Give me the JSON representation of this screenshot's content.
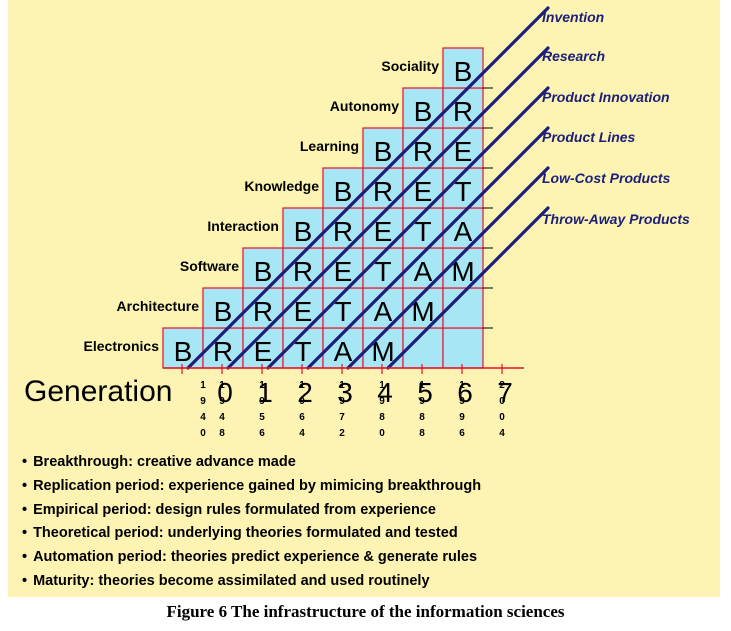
{
  "rows": [
    {
      "label": "Electronics",
      "start_generation": 0
    },
    {
      "label": "Architecture",
      "start_generation": 1
    },
    {
      "label": "Software",
      "start_generation": 2
    },
    {
      "label": "Interaction",
      "start_generation": 3
    },
    {
      "label": "Knowledge",
      "start_generation": 4
    },
    {
      "label": "Learning",
      "start_generation": 5
    },
    {
      "label": "Autonomy",
      "start_generation": 6
    },
    {
      "label": "Sociality",
      "start_generation": 7
    }
  ],
  "phase_letters": [
    "B",
    "R",
    "E",
    "T",
    "A",
    "M"
  ],
  "diagonal_labels": [
    "Invention",
    "Research",
    "Product Innovation",
    "Product Lines",
    "Low-Cost Products",
    "Throw-Away Products"
  ],
  "generation_title": "Generation",
  "generations": [
    "0",
    "1",
    "2",
    "3",
    "4",
    "5",
    "6",
    "7"
  ],
  "years": [
    "1940",
    "1948",
    "1956",
    "1964",
    "1972",
    "1980",
    "1988",
    "1996",
    "2004"
  ],
  "bullets": [
    "Breakthrough: creative advance made",
    "Replication period: experience gained by mimicing breakthrough",
    "Empirical period: design rules formulated from experience",
    "Theoretical period: underlying theories formulated and tested",
    "Automation period: theories predict experience & generate rules",
    "Maturity: theories become assimilated and used routinely"
  ],
  "caption": "Figure 6 The infrastructure of the information sciences",
  "colors": {
    "background": "#fdf4b3",
    "cell_fill": "#a6e6f5",
    "cell_border": "#e8102c",
    "diagonal": "#1b1f7a",
    "axis": "#e8102c"
  }
}
